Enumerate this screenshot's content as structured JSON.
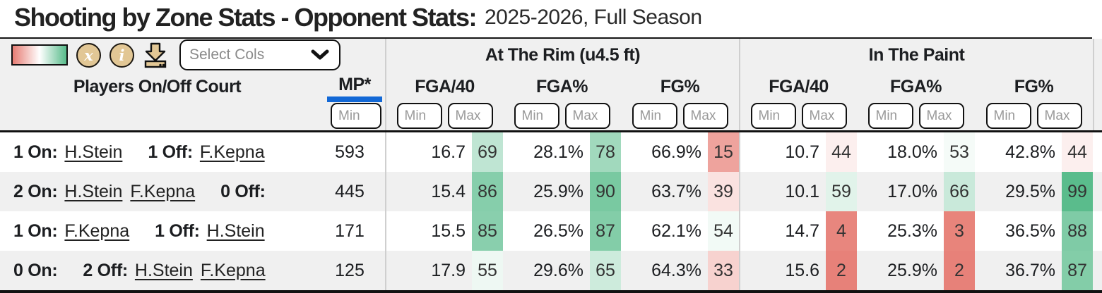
{
  "title": {
    "main": "Shooting by Zone Stats - Opponent Stats:",
    "sub": "2025-2026, Full Season"
  },
  "toolbar": {
    "gradient_colors": [
      "#e67c73",
      "#ffffff",
      "#57bb8a"
    ],
    "icon_bg": "#e2c795",
    "x_glyph": "x",
    "info_glyph": "i",
    "select_cols_label": "Select Cols"
  },
  "table": {
    "accent_blue": "#1268d6",
    "color_scale": {
      "low": "#e67c73",
      "mid": "#ffffff",
      "high": "#57bb8a"
    },
    "group_headers": [
      "At The Rim (u4.5 ft)",
      "In The Paint"
    ],
    "players_header": "Players On/Off Court",
    "mp_header": "MP*",
    "stat_headers": [
      "FGA/40",
      "FGA%",
      "FG%"
    ],
    "filter": {
      "min": "Min",
      "max": "Max"
    },
    "rows": [
      {
        "on_label": "1 On:",
        "on_players": [
          "H.Stein"
        ],
        "off_label": "1 Off:",
        "off_players": [
          "F.Kepna"
        ],
        "mp": "593",
        "cells": [
          {
            "value": "16.7",
            "rank": 69
          },
          {
            "value": "28.1%",
            "rank": 78
          },
          {
            "value": "66.9%",
            "rank": 15
          },
          {
            "value": "10.7",
            "rank": 44
          },
          {
            "value": "18.0%",
            "rank": 53
          },
          {
            "value": "42.8%",
            "rank": 44
          }
        ]
      },
      {
        "on_label": "2 On:",
        "on_players": [
          "H.Stein",
          "F.Kepna"
        ],
        "off_label": "0 Off:",
        "off_players": [],
        "mp": "445",
        "cells": [
          {
            "value": "15.4",
            "rank": 86
          },
          {
            "value": "25.9%",
            "rank": 90
          },
          {
            "value": "63.7%",
            "rank": 39
          },
          {
            "value": "10.1",
            "rank": 59
          },
          {
            "value": "17.0%",
            "rank": 66
          },
          {
            "value": "29.5%",
            "rank": 99
          }
        ]
      },
      {
        "on_label": "1 On:",
        "on_players": [
          "F.Kepna"
        ],
        "off_label": "1 Off:",
        "off_players": [
          "H.Stein"
        ],
        "mp": "171",
        "cells": [
          {
            "value": "15.5",
            "rank": 85
          },
          {
            "value": "26.5%",
            "rank": 87
          },
          {
            "value": "62.1%",
            "rank": 54
          },
          {
            "value": "14.7",
            "rank": 4
          },
          {
            "value": "25.3%",
            "rank": 3
          },
          {
            "value": "36.5%",
            "rank": 88
          }
        ]
      },
      {
        "on_label": "0 On:",
        "on_players": [],
        "off_label": "2 Off:",
        "off_players": [
          "H.Stein",
          "F.Kepna"
        ],
        "mp": "125",
        "cells": [
          {
            "value": "17.9",
            "rank": 55
          },
          {
            "value": "29.6%",
            "rank": 65
          },
          {
            "value": "64.3%",
            "rank": 33
          },
          {
            "value": "15.6",
            "rank": 2
          },
          {
            "value": "25.9%",
            "rank": 2
          },
          {
            "value": "36.7%",
            "rank": 87
          }
        ]
      }
    ]
  }
}
